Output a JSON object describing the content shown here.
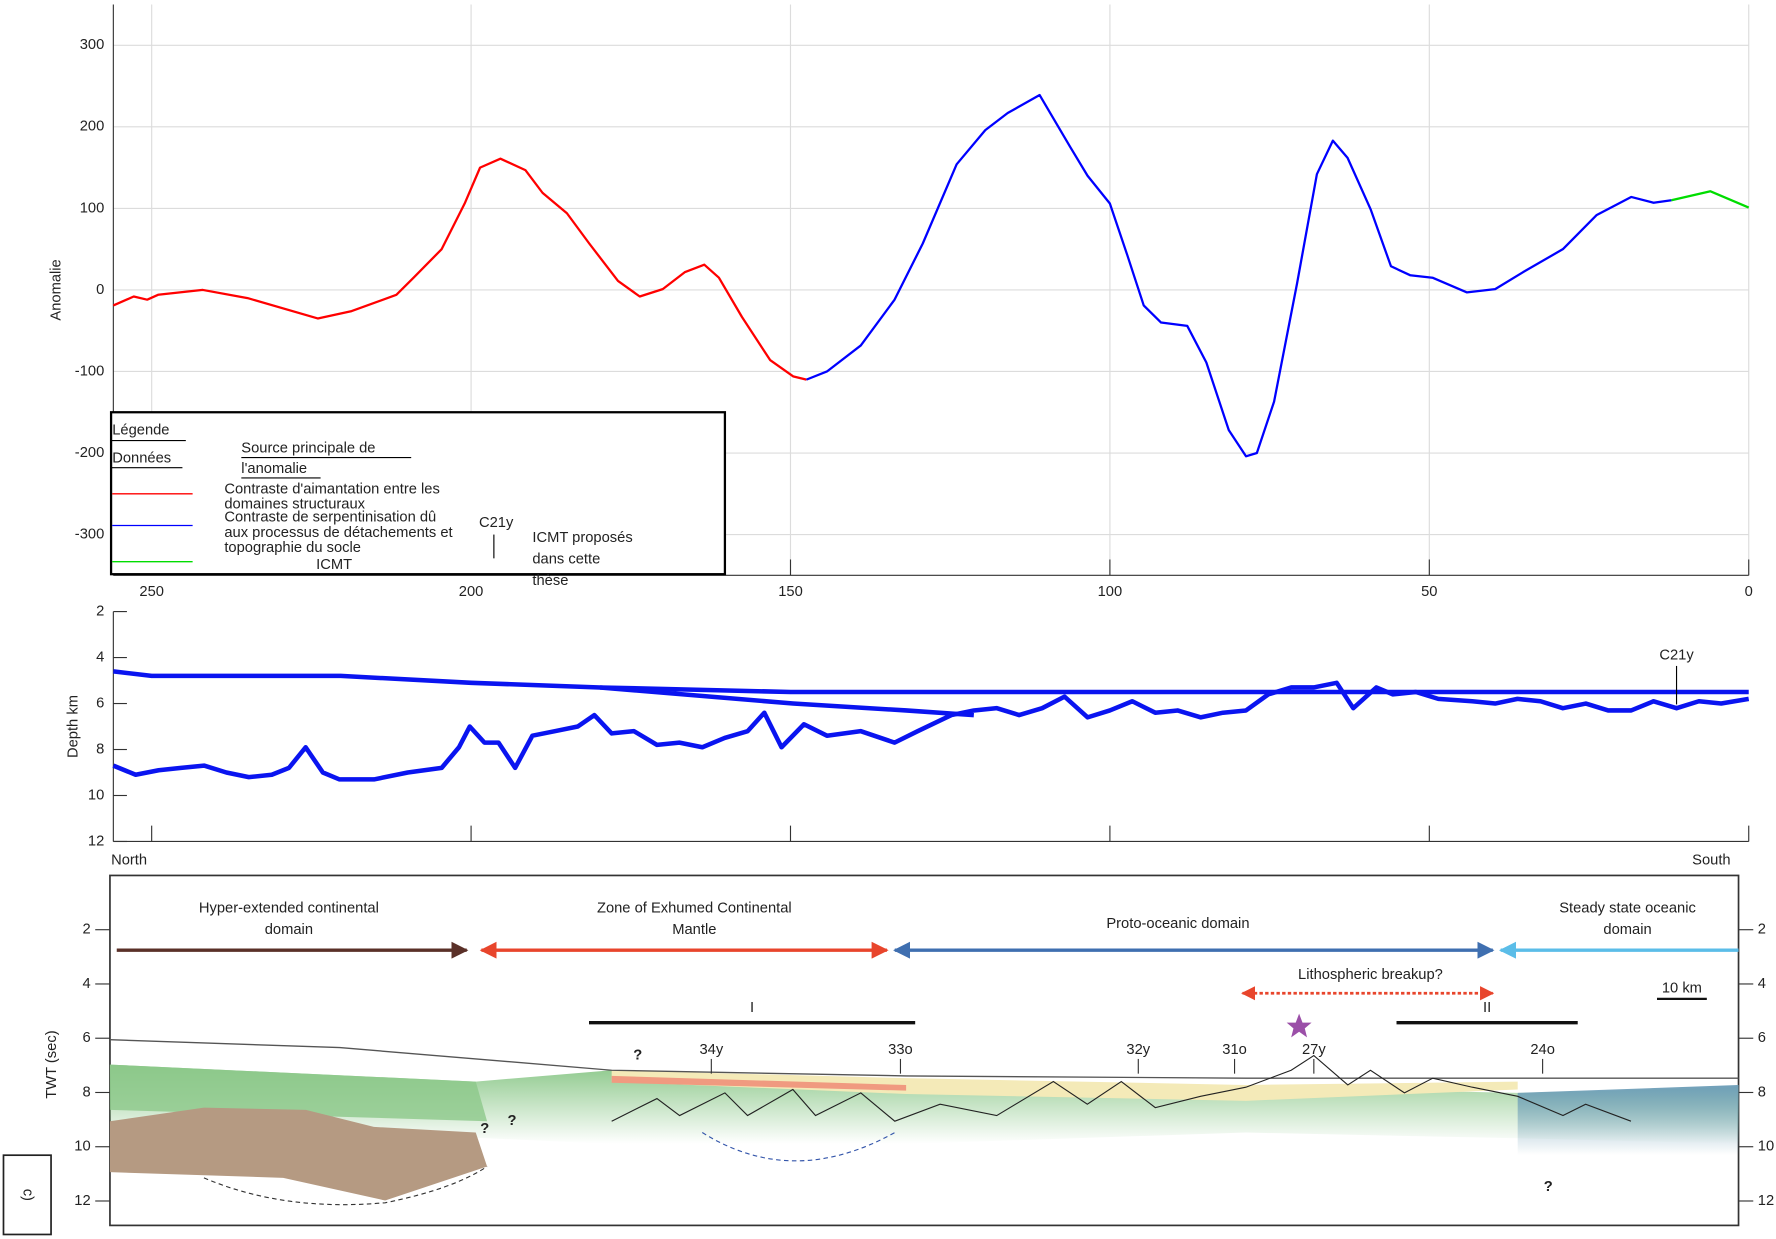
{
  "chart_data": [
    {
      "type": "line",
      "y_label": "Anomalie",
      "xlim": [
        256,
        0
      ],
      "xticks": [
        250,
        200,
        150,
        100,
        50,
        0
      ],
      "ylim": [
        -350,
        350
      ],
      "yticks": [
        300,
        200,
        100,
        0,
        -100,
        -200,
        -300
      ],
      "grid": true,
      "legend_title": "Légende",
      "legend_data_header": "Données",
      "legend_source_header": "Source principale de l'anomalie",
      "legend_marker_label": "C21y",
      "legend_marker_text": "ICMT proposés dans cette thèse",
      "series": [
        {
          "name": "Contraste d'aimantation entre les domaines structuraux",
          "color": "#ff0000",
          "x": [
            256,
            252.8,
            250.7,
            249,
            242,
            235,
            224,
            218.7,
            211.7,
            209,
            204.6,
            201,
            198.6,
            195.4,
            191.5,
            188.8,
            185,
            181.5,
            177,
            173.6,
            170,
            166.5,
            163.5,
            161.2,
            157.6,
            153.2,
            149.6,
            147.5
          ],
          "values": [
            -19,
            -8,
            -12,
            -6,
            0,
            -10,
            -35,
            -26,
            -6,
            15,
            50,
            106,
            150,
            161,
            147,
            119,
            94,
            57,
            11,
            -8,
            1,
            22,
            31,
            15,
            -33,
            -86,
            -106,
            -110
          ]
        },
        {
          "name": "Contraste de serpentinisation dû aux processus de détachements et topographie du socle",
          "color": "#0000ff",
          "x": [
            147.5,
            144.3,
            139,
            133.7,
            129.3,
            124,
            119.5,
            116,
            111,
            106.2,
            103.5,
            100,
            97.3,
            94.7,
            92,
            87.9,
            84.9,
            81.4,
            78.7,
            77,
            74.3,
            70.7,
            67.6,
            65.1,
            62.8,
            59.2,
            56,
            53,
            49.5,
            44.1,
            39.7,
            35.3,
            29.1,
            23.8,
            18.4,
            14.9,
            12.1
          ],
          "values": [
            -110,
            -100,
            -68,
            -12,
            57,
            154,
            196,
            217,
            239,
            175,
            140,
            106,
            43,
            -19,
            -40,
            -44,
            -89,
            -172,
            -204,
            -200,
            -137,
            8,
            142,
            183,
            162,
            99,
            29,
            18,
            15,
            -3,
            1,
            22,
            50,
            92,
            114,
            107,
            110
          ]
        },
        {
          "name": "ICMT",
          "color": "#00dd00",
          "x": [
            12.1,
            6,
            0
          ],
          "values": [
            110,
            121,
            101
          ]
        }
      ]
    },
    {
      "type": "line",
      "y_label": "Depth km",
      "left_label": "North",
      "right_label": "South",
      "marker_label": "C21y",
      "marker_x": 11.3,
      "xlim": [
        256,
        0
      ],
      "xticks": [
        250,
        200,
        150,
        100,
        50,
        0
      ],
      "ylim": [
        12,
        2
      ],
      "yticks": [
        2,
        4,
        6,
        8,
        10,
        12
      ],
      "grid": false,
      "series": [
        {
          "color": "#0a14f0",
          "x": [
            256,
            250,
            220.4,
            200,
            179.8,
            150,
            131.9,
            0
          ],
          "values": [
            4.6,
            4.8,
            4.8,
            5.1,
            5.3,
            5.5,
            5.5,
            5.5
          ]
        },
        {
          "color": "#0a14f0",
          "x": [
            179.8,
            149.6,
            131.9,
            121.3
          ],
          "values": [
            5.3,
            6.0,
            6.3,
            6.5
          ]
        },
        {
          "color": "#0a14f0",
          "x": [
            256,
            252.5,
            248.9,
            245.4,
            241.8,
            238.3,
            234.8,
            231.2,
            228.5,
            225.9,
            223.2,
            220.6,
            215.2,
            209.9,
            204.6,
            201.9,
            200.2,
            197.9,
            195.7,
            193.1,
            190.4,
            186.9,
            183.3,
            180.7,
            178,
            174.5,
            170.9,
            167.4,
            163.8,
            160.3,
            156.7,
            154.1,
            151.4,
            147.9,
            144.3,
            139,
            133.7,
            130.1,
            124.8,
            121.3,
            117.7,
            114.2,
            110.6,
            107.1,
            103.5,
            100,
            96.5,
            92.9,
            89.4,
            85.8,
            82.3,
            78.7,
            75.2,
            71.6,
            68.1,
            64.5,
            61.9,
            58.3,
            55.7,
            52.1,
            48.6,
            43.3,
            39.7,
            36.2,
            32.6,
            29.1,
            25.5,
            22,
            18.4,
            14.9,
            11.3,
            7.8,
            4.3,
            0
          ],
          "values": [
            8.7,
            9.1,
            8.9,
            8.8,
            8.7,
            9.0,
            9.2,
            9.1,
            8.8,
            7.9,
            9.0,
            9.3,
            9.3,
            9.0,
            8.8,
            7.9,
            7.0,
            7.7,
            7.7,
            8.8,
            7.4,
            7.2,
            7.0,
            6.5,
            7.3,
            7.2,
            7.8,
            7.7,
            7.9,
            7.5,
            7.2,
            6.4,
            7.9,
            6.9,
            7.4,
            7.2,
            7.7,
            7.2,
            6.5,
            6.3,
            6.2,
            6.5,
            6.2,
            5.7,
            6.6,
            6.3,
            5.9,
            6.4,
            6.3,
            6.6,
            6.4,
            6.3,
            5.6,
            5.3,
            5.3,
            5.1,
            6.2,
            5.3,
            5.6,
            5.5,
            5.8,
            5.9,
            6.0,
            5.8,
            5.9,
            6.2,
            6.0,
            6.3,
            6.3,
            5.9,
            6.2,
            5.9,
            6.0,
            5.8
          ]
        }
      ]
    },
    {
      "type": "cross-section",
      "y_label": "TWT (sec)",
      "ylim": [
        12.9,
        0
      ],
      "yticks": [
        2,
        4,
        6,
        8,
        10,
        12
      ],
      "domains": [
        {
          "label": "Hyper-extended continental domain",
          "color": "#5a3028"
        },
        {
          "label": "Zone of Exhumed Continental Mantle",
          "color": "#e8452c"
        },
        {
          "label": "Proto-oceanic domain",
          "color": "#3f6fb0"
        },
        {
          "label": "Steady state oceanic domain",
          "color": "#5bbde8"
        }
      ],
      "breakup": {
        "label": "Lithospheric breakup?",
        "color": "#e8452c"
      },
      "scale_label": "10 km",
      "profiles": [
        "I",
        "II"
      ],
      "anomalies": [
        "34y",
        "33o",
        "32y",
        "31o",
        "27y",
        "24o"
      ],
      "queries": [
        "?",
        "?",
        "?",
        "?"
      ],
      "panel_label": "c)"
    }
  ]
}
